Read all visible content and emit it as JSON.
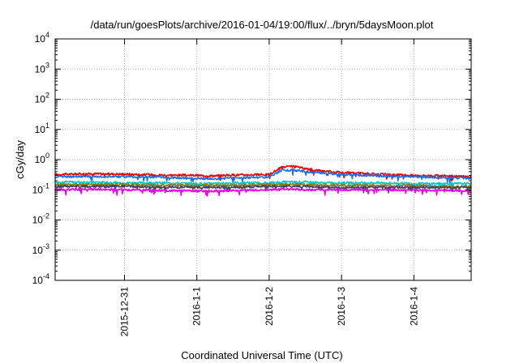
{
  "chart_data": {
    "type": "line",
    "title": "/data/run/goesPlots/archive/2016-01-04/19:00/flux/../bryn/5daysMoon.plot",
    "xlabel": "Coordinated Universal Time (UTC)",
    "ylabel": "cGy/day",
    "y_scale": "log",
    "ylim": [
      0.0001,
      10000
    ],
    "y_ticks": [
      {
        "base": "10",
        "exp": "-4",
        "value": 0.0001
      },
      {
        "base": "10",
        "exp": "-3",
        "value": 0.001
      },
      {
        "base": "10",
        "exp": "-2",
        "value": 0.01
      },
      {
        "base": "10",
        "exp": "-1",
        "value": 0.1
      },
      {
        "base": "10",
        "exp": "0",
        "value": 1
      },
      {
        "base": "10",
        "exp": "1",
        "value": 10
      },
      {
        "base": "10",
        "exp": "2",
        "value": 100
      },
      {
        "base": "10",
        "exp": "3",
        "value": 1000
      },
      {
        "base": "10",
        "exp": "4",
        "value": 10000
      }
    ],
    "xlim": [
      "2015-12-30 01:00",
      "2016-01-04 19:00"
    ],
    "x_ticks": [
      "2015-12-31",
      "2016-1-1",
      "2016-1-2",
      "2016-1-3",
      "2016-1-4"
    ],
    "grid": true,
    "x": [
      "2015-12-30 01:00",
      "2015-12-30 12:00",
      "2015-12-31 00:00",
      "2015-12-31 12:00",
      "2016-01-01 00:00",
      "2016-01-01 06:00",
      "2016-01-01 12:00",
      "2016-01-02 00:00",
      "2016-01-02 04:00",
      "2016-01-02 08:00",
      "2016-01-02 12:00",
      "2016-01-02 18:00",
      "2016-01-03 00:00",
      "2016-01-03 12:00",
      "2016-01-04 00:00",
      "2016-01-04 12:00",
      "2016-01-04 19:00"
    ],
    "series": [
      {
        "color": "#ee0000",
        "values": [
          0.32,
          0.34,
          0.33,
          0.31,
          0.3,
          0.29,
          0.31,
          0.32,
          0.55,
          0.6,
          0.5,
          0.42,
          0.38,
          0.33,
          0.3,
          0.29,
          0.27
        ]
      },
      {
        "color": "#1a6ee8",
        "values": [
          0.27,
          0.28,
          0.27,
          0.26,
          0.24,
          0.23,
          0.25,
          0.26,
          0.44,
          0.45,
          0.4,
          0.36,
          0.32,
          0.29,
          0.27,
          0.25,
          0.24
        ]
      },
      {
        "color": "#00c8c8",
        "values": [
          0.18,
          0.18,
          0.17,
          0.17,
          0.16,
          0.16,
          0.17,
          0.17,
          0.18,
          0.18,
          0.18,
          0.17,
          0.17,
          0.17,
          0.16,
          0.16,
          0.16
        ]
      },
      {
        "color": "#8a7a14",
        "values": [
          0.15,
          0.15,
          0.15,
          0.14,
          0.14,
          0.14,
          0.14,
          0.15,
          0.15,
          0.15,
          0.15,
          0.14,
          0.14,
          0.14,
          0.14,
          0.13,
          0.13
        ]
      },
      {
        "color": "#404060",
        "values": [
          0.13,
          0.13,
          0.13,
          0.12,
          0.12,
          0.12,
          0.12,
          0.13,
          0.13,
          0.13,
          0.13,
          0.12,
          0.12,
          0.12,
          0.12,
          0.12,
          0.12
        ]
      },
      {
        "color": "#ee00ee",
        "values": [
          0.1,
          0.105,
          0.1,
          0.095,
          0.09,
          0.09,
          0.095,
          0.1,
          0.105,
          0.105,
          0.1,
          0.1,
          0.1,
          0.1,
          0.098,
          0.095,
          0.095
        ]
      }
    ]
  }
}
